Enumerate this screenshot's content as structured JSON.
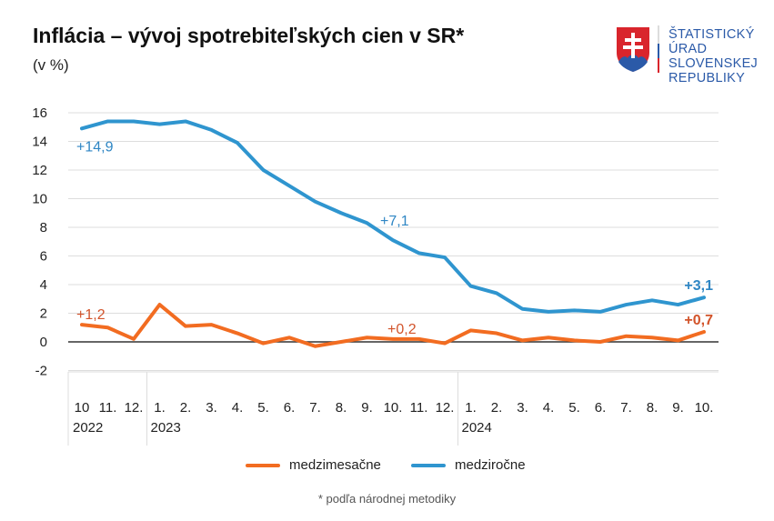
{
  "header": {
    "title": "Inflácia – vývoj spotrebiteľských cien v SR*",
    "subtitle": "(v %)"
  },
  "logo": {
    "lines": [
      "ŠTATISTICKÝ",
      "ÚRAD",
      "SLOVENSKEJ",
      "REPUBLIKY"
    ]
  },
  "footnote": "* podľa národnej metodiky",
  "chart_data": {
    "type": "line",
    "ylim": [
      -2,
      16
    ],
    "yticks": [
      -2,
      0,
      2,
      4,
      6,
      8,
      10,
      12,
      14,
      16
    ],
    "x_month_labels": [
      "10",
      "11.",
      "12.",
      "1.",
      "2.",
      "3.",
      "4.",
      "5.",
      "6.",
      "7.",
      "8.",
      "9.",
      "10.",
      "11.",
      "12.",
      "1.",
      "2.",
      "3.",
      "4.",
      "5.",
      "6.",
      "7.",
      "8.",
      "9.",
      "10."
    ],
    "x_year_labels": [
      {
        "index": 0,
        "label": "2022"
      },
      {
        "index": 3,
        "label": "2023"
      },
      {
        "index": 15,
        "label": "2024"
      }
    ],
    "grid": true,
    "legend_placement": "bottom",
    "series": [
      {
        "name": "medzimesačne",
        "color": "#f26c21",
        "label_color": "#d2532a",
        "values": [
          1.2,
          1.0,
          0.2,
          2.6,
          1.1,
          1.2,
          0.6,
          -0.1,
          0.3,
          -0.3,
          0.0,
          0.3,
          0.2,
          0.2,
          -0.1,
          0.8,
          0.6,
          0.1,
          0.3,
          0.1,
          0.0,
          0.4,
          0.3,
          0.1,
          0.7
        ],
        "annotations": [
          {
            "index": 0,
            "text": "+1,2"
          },
          {
            "index": 12,
            "text": "+0,2"
          },
          {
            "index": 24,
            "text": "+0,7"
          }
        ]
      },
      {
        "name": "medziročne",
        "color": "#2f95cf",
        "label_color": "#2f86c4",
        "values": [
          14.9,
          15.4,
          15.4,
          15.2,
          15.4,
          14.8,
          13.9,
          12.0,
          10.9,
          9.8,
          9.0,
          8.3,
          7.1,
          6.2,
          5.9,
          3.9,
          3.4,
          2.3,
          2.1,
          2.2,
          2.1,
          2.6,
          2.9,
          2.6,
          3.1
        ],
        "annotations": [
          {
            "index": 0,
            "text": "+14,9"
          },
          {
            "index": 12,
            "text": "+7,1"
          },
          {
            "index": 24,
            "text": "+3,1"
          }
        ]
      }
    ]
  }
}
